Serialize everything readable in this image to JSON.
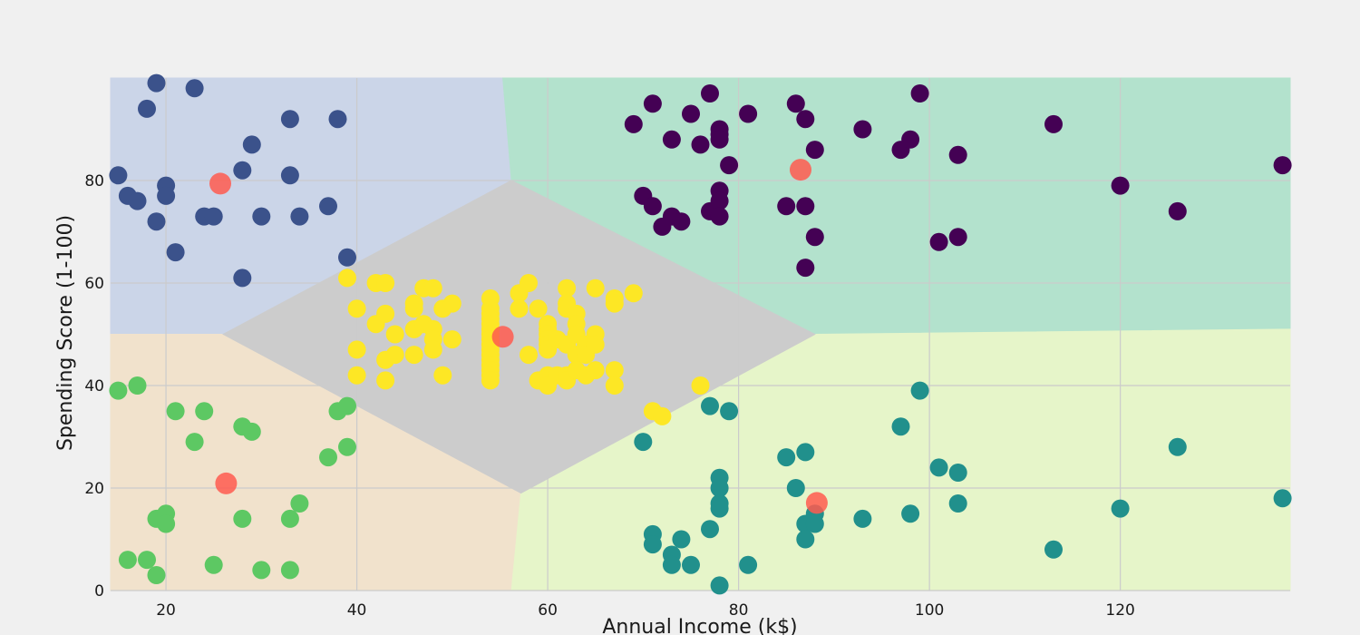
{
  "chart_data": {
    "type": "scatter",
    "title": "",
    "xlabel": "Annual Income (k$)",
    "ylabel": "Spending Score (1-100)",
    "xlim": [
      14.2,
      137.8
    ],
    "ylim": [
      0,
      100
    ],
    "x_ticks": [
      20,
      40,
      60,
      80,
      100,
      120
    ],
    "y_ticks": [
      0,
      20,
      40,
      60,
      80
    ],
    "grid": true,
    "legend": "none",
    "regions": [
      {
        "cluster": "top-left",
        "color": "#cbd5e8",
        "polygon": [
          [
            14.2,
            100
          ],
          [
            55.3,
            100
          ],
          [
            56.2,
            80
          ],
          [
            14.2,
            80
          ]
        ]
      },
      {
        "cluster": "top-left",
        "color": "#cbd5e8",
        "polygon": [
          [
            14.2,
            80
          ],
          [
            56.2,
            80
          ],
          [
            26,
            50
          ],
          [
            14.2,
            50
          ]
        ]
      },
      {
        "cluster": "top-right",
        "color": "#b3e2cd",
        "polygon": [
          [
            55.3,
            100
          ],
          [
            137.8,
            100
          ],
          [
            137.8,
            51
          ],
          [
            88,
            50
          ],
          [
            56.2,
            80
          ]
        ]
      },
      {
        "cluster": "bottom-left",
        "color": "#f1e2cc",
        "polygon": [
          [
            14.2,
            50
          ],
          [
            26,
            50
          ],
          [
            57.2,
            19
          ],
          [
            56.2,
            0
          ],
          [
            14.2,
            0
          ]
        ]
      },
      {
        "cluster": "bottom-right",
        "color": "#e6f5c9",
        "polygon": [
          [
            57.2,
            19
          ],
          [
            88,
            50
          ],
          [
            137.8,
            51
          ],
          [
            137.8,
            0
          ],
          [
            56.2,
            0
          ]
        ]
      },
      {
        "cluster": "middle",
        "color": "#cccccc",
        "polygon": [
          [
            26,
            50
          ],
          [
            56.2,
            80
          ],
          [
            88,
            50
          ],
          [
            57.2,
            19
          ]
        ]
      }
    ],
    "series": [
      {
        "cluster": "top-right",
        "color": "#440154",
        "points": [
          [
            69,
            91
          ],
          [
            71,
            95
          ],
          [
            77,
            97
          ],
          [
            86,
            95
          ],
          [
            87,
            92
          ],
          [
            73,
            88
          ],
          [
            75,
            93
          ],
          [
            76,
            87
          ],
          [
            78,
            90
          ],
          [
            78,
            89
          ],
          [
            78,
            88
          ],
          [
            79,
            83
          ],
          [
            81,
            93
          ],
          [
            88,
            86
          ],
          [
            93,
            90
          ],
          [
            97,
            86
          ],
          [
            98,
            88
          ],
          [
            99,
            97
          ],
          [
            103,
            85
          ],
          [
            113,
            91
          ],
          [
            137,
            83
          ],
          [
            70,
            77
          ],
          [
            71,
            75
          ],
          [
            72,
            71
          ],
          [
            73,
            73
          ],
          [
            74,
            72
          ],
          [
            77,
            74
          ],
          [
            78,
            78
          ],
          [
            78,
            76
          ],
          [
            78,
            73
          ],
          [
            85,
            75
          ],
          [
            87,
            75
          ],
          [
            88,
            69
          ],
          [
            87,
            63
          ],
          [
            101,
            68
          ],
          [
            103,
            69
          ],
          [
            120,
            79
          ],
          [
            126,
            74
          ]
        ]
      },
      {
        "cluster": "top-left",
        "color": "#3b528b",
        "points": [
          [
            19,
            99
          ],
          [
            23,
            98
          ],
          [
            18,
            94
          ],
          [
            33,
            92
          ],
          [
            38,
            92
          ],
          [
            29,
            87
          ],
          [
            15,
            81
          ],
          [
            28,
            82
          ],
          [
            33,
            81
          ],
          [
            16,
            77
          ],
          [
            17,
            76
          ],
          [
            20,
            79
          ],
          [
            20,
            77
          ],
          [
            19,
            72
          ],
          [
            24,
            73
          ],
          [
            25,
            73
          ],
          [
            30,
            73
          ],
          [
            34,
            73
          ],
          [
            37,
            75
          ],
          [
            21,
            66
          ],
          [
            39,
            65
          ],
          [
            28,
            61
          ]
        ]
      },
      {
        "cluster": "bottom-right",
        "color": "#21908c",
        "points": [
          [
            77,
            36
          ],
          [
            79,
            35
          ],
          [
            70,
            29
          ],
          [
            78,
            22
          ],
          [
            78,
            20
          ],
          [
            78,
            17
          ],
          [
            78,
            16
          ],
          [
            77,
            12
          ],
          [
            71,
            11
          ],
          [
            71,
            9
          ],
          [
            74,
            10
          ],
          [
            73,
            7
          ],
          [
            73,
            5
          ],
          [
            75,
            5
          ],
          [
            81,
            5
          ],
          [
            78,
            1
          ],
          [
            85,
            26
          ],
          [
            87,
            27
          ],
          [
            86,
            20
          ],
          [
            88,
            15
          ],
          [
            87,
            13
          ],
          [
            88,
            13
          ],
          [
            87,
            10
          ],
          [
            93,
            14
          ],
          [
            98,
            15
          ],
          [
            97,
            32
          ],
          [
            99,
            39
          ],
          [
            101,
            24
          ],
          [
            103,
            23
          ],
          [
            103,
            17
          ],
          [
            113,
            8
          ],
          [
            120,
            16
          ],
          [
            126,
            28
          ],
          [
            137,
            18
          ]
        ]
      },
      {
        "cluster": "bottom-left",
        "color": "#5dc863",
        "points": [
          [
            15,
            39
          ],
          [
            17,
            40
          ],
          [
            21,
            35
          ],
          [
            24,
            35
          ],
          [
            23,
            29
          ],
          [
            28,
            32
          ],
          [
            29,
            31
          ],
          [
            38,
            35
          ],
          [
            39,
            36
          ],
          [
            39,
            28
          ],
          [
            37,
            26
          ],
          [
            34,
            17
          ],
          [
            33,
            14
          ],
          [
            28,
            14
          ],
          [
            19,
            14
          ],
          [
            20,
            15
          ],
          [
            20,
            13
          ],
          [
            16,
            6
          ],
          [
            18,
            6
          ],
          [
            19,
            3
          ],
          [
            25,
            5
          ],
          [
            30,
            4
          ],
          [
            33,
            4
          ]
        ]
      },
      {
        "cluster": "middle",
        "color": "#fde725",
        "points": [
          [
            39,
            61
          ],
          [
            42,
            60
          ],
          [
            43,
            60
          ],
          [
            40,
            55
          ],
          [
            42,
            52
          ],
          [
            43,
            54
          ],
          [
            44,
            50
          ],
          [
            40,
            47
          ],
          [
            40,
            42
          ],
          [
            43,
            41
          ],
          [
            43,
            45
          ],
          [
            44,
            46
          ],
          [
            46,
            46
          ],
          [
            46,
            51
          ],
          [
            46,
            55
          ],
          [
            46,
            56
          ],
          [
            47,
            59
          ],
          [
            48,
            59
          ],
          [
            47,
            52
          ],
          [
            48,
            51
          ],
          [
            48,
            49
          ],
          [
            48,
            47
          ],
          [
            49,
            55
          ],
          [
            50,
            56
          ],
          [
            50,
            49
          ],
          [
            49,
            42
          ],
          [
            54,
            57
          ],
          [
            54,
            55
          ],
          [
            54,
            54
          ],
          [
            54,
            53
          ],
          [
            54,
            52
          ],
          [
            54,
            51
          ],
          [
            54,
            50
          ],
          [
            54,
            49
          ],
          [
            54,
            48
          ],
          [
            54,
            47
          ],
          [
            54,
            46
          ],
          [
            54,
            45
          ],
          [
            54,
            44
          ],
          [
            54,
            43
          ],
          [
            54,
            42
          ],
          [
            54,
            41
          ],
          [
            57,
            58
          ],
          [
            57,
            55
          ],
          [
            58,
            60
          ],
          [
            58,
            46
          ],
          [
            59,
            55
          ],
          [
            59,
            41
          ],
          [
            60,
            52
          ],
          [
            60,
            51
          ],
          [
            60,
            50
          ],
          [
            60,
            49
          ],
          [
            60,
            48
          ],
          [
            60,
            47
          ],
          [
            60,
            42
          ],
          [
            60,
            40
          ],
          [
            61,
            49
          ],
          [
            61,
            42
          ],
          [
            62,
            59
          ],
          [
            62,
            56
          ],
          [
            62,
            55
          ],
          [
            62,
            48
          ],
          [
            62,
            42
          ],
          [
            62,
            41
          ],
          [
            63,
            54
          ],
          [
            63,
            52
          ],
          [
            63,
            50
          ],
          [
            63,
            46
          ],
          [
            63,
            43
          ],
          [
            64,
            48
          ],
          [
            64,
            46
          ],
          [
            64,
            42
          ],
          [
            65,
            59
          ],
          [
            65,
            50
          ],
          [
            65,
            48
          ],
          [
            65,
            43
          ],
          [
            67,
            57
          ],
          [
            67,
            56
          ],
          [
            67,
            43
          ],
          [
            67,
            40
          ],
          [
            69,
            58
          ],
          [
            71,
            35
          ],
          [
            72,
            34
          ],
          [
            76,
            40
          ]
        ]
      }
    ],
    "centroids": {
      "color": "#ff5b4f",
      "points": [
        [
          25.7,
          79.4
        ],
        [
          86.5,
          82.1
        ],
        [
          55.3,
          49.5
        ],
        [
          26.3,
          20.9
        ],
        [
          88.2,
          17.1
        ]
      ]
    }
  }
}
